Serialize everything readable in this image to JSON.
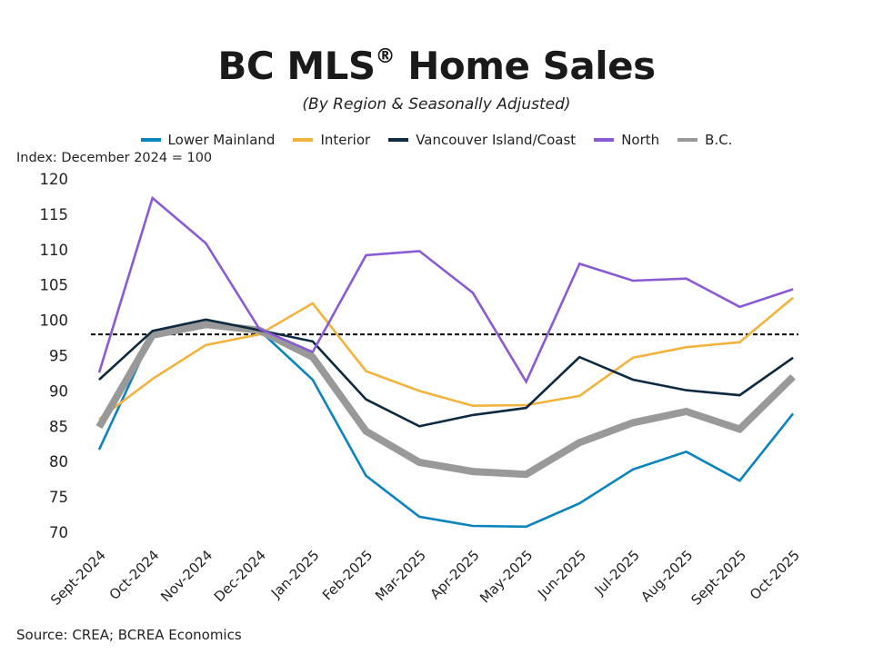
{
  "chart_data": {
    "type": "line",
    "title": "BC MLS",
    "title_mark": "®",
    "title_rest": " Home Sales",
    "subtitle": "(By Region & Seasonally Adjusted)",
    "ylabel": "Index: December 2024 = 100",
    "xlabel": "",
    "source": "Source: CREA; BCREA Economics",
    "ylim": [
      70,
      120
    ],
    "yticks": [
      120,
      115,
      110,
      105,
      100,
      95,
      90,
      85,
      80,
      75,
      70
    ],
    "grid": false,
    "legend_position": "top-center",
    "reference_line": {
      "value": 98,
      "style": "dashed",
      "color": "#000000"
    },
    "x": [
      "Sept-2024",
      "Oct-2024",
      "Nov-2024",
      "Dec-2024",
      "Jan-2025",
      "Feb-2025",
      "Mar-2025",
      "Apr-2025",
      "May-2025",
      "Jun-2025",
      "Jul-2025",
      "Aug-2025",
      "Sept-2025",
      "Oct-2025"
    ],
    "series": [
      {
        "name": "Lower Mainland",
        "color": "#0a84bd",
        "weight": "normal",
        "values": [
          81.7,
          98.0,
          99.8,
          98.6,
          91.6,
          78.0,
          72.2,
          70.9,
          70.8,
          74.1,
          78.9,
          81.4,
          77.3,
          86.8
        ]
      },
      {
        "name": "Interior",
        "color": "#f2b33d",
        "weight": "normal",
        "values": [
          86.0,
          91.7,
          96.5,
          98.0,
          102.4,
          92.8,
          90.0,
          87.9,
          88.0,
          89.3,
          94.7,
          96.2,
          96.9,
          103.2
        ]
      },
      {
        "name": "Vancouver Island/Coast",
        "color": "#0d2a40",
        "weight": "normal",
        "values": [
          91.6,
          98.5,
          100.1,
          98.6,
          97.0,
          88.8,
          85.0,
          86.6,
          87.6,
          94.8,
          91.6,
          90.1,
          89.4,
          94.7
        ]
      },
      {
        "name": "North",
        "color": "#8a5ad6",
        "weight": "normal",
        "values": [
          92.6,
          117.3,
          110.9,
          98.8,
          95.5,
          109.2,
          109.8,
          103.9,
          91.3,
          108.0,
          105.6,
          105.9,
          101.9,
          104.4
        ]
      },
      {
        "name": "B.C.",
        "color": "#999999",
        "weight": "bold",
        "values": [
          84.9,
          97.9,
          99.4,
          98.6,
          94.8,
          84.3,
          79.9,
          78.6,
          78.2,
          82.7,
          85.5,
          87.1,
          84.6,
          92.0
        ]
      }
    ]
  }
}
